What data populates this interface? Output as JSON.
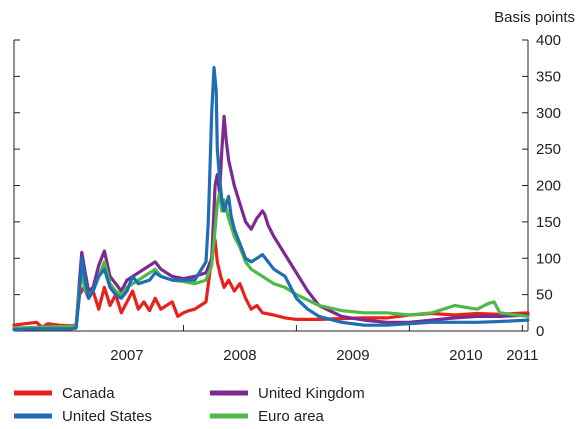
{
  "chart_data": {
    "type": "line",
    "title": "",
    "xlabel": "",
    "ylabel": "Basis points",
    "xlim": [
      2006.5,
      2011.05
    ],
    "ylim": [
      0,
      400
    ],
    "grid": false,
    "legend_position": "bottom-left",
    "x_ticks": [
      "2007",
      "2008",
      "2009",
      "2010",
      "2011"
    ],
    "y_ticks": [
      "0",
      "50",
      "100",
      "150",
      "200",
      "250",
      "300",
      "350",
      "400"
    ],
    "series": [
      {
        "name": "Canada",
        "color": "#e8211c",
        "x": [
          2006.5,
          2006.6,
          2006.7,
          2006.75,
          2006.8,
          2006.9,
          2007.0,
          2007.05,
          2007.08,
          2007.12,
          2007.16,
          2007.2,
          2007.25,
          2007.3,
          2007.35,
          2007.4,
          2007.45,
          2007.5,
          2007.55,
          2007.6,
          2007.65,
          2007.7,
          2007.75,
          2007.8,
          2007.85,
          2007.9,
          2007.95,
          2008.0,
          2008.05,
          2008.1,
          2008.15,
          2008.2,
          2008.25,
          2008.28,
          2008.3,
          2008.33,
          2008.36,
          2008.4,
          2008.45,
          2008.5,
          2008.55,
          2008.6,
          2008.65,
          2008.7,
          2008.8,
          2008.9,
          2009.0,
          2009.2,
          2009.4,
          2009.6,
          2009.8,
          2010.0,
          2010.2,
          2010.4,
          2010.6,
          2010.8,
          2011.05
        ],
        "y": [
          8,
          10,
          12,
          5,
          10,
          8,
          7,
          8,
          50,
          60,
          45,
          55,
          30,
          60,
          35,
          50,
          25,
          40,
          55,
          30,
          40,
          28,
          45,
          30,
          35,
          40,
          20,
          25,
          28,
          30,
          35,
          40,
          100,
          125,
          95,
          75,
          60,
          70,
          55,
          65,
          45,
          30,
          35,
          25,
          22,
          18,
          16,
          16,
          17,
          18,
          18,
          22,
          24,
          22,
          24,
          23,
          25
        ]
      },
      {
        "name": "United Kingdom",
        "color": "#7b2a90",
        "x": [
          2006.5,
          2006.7,
          2006.9,
          2007.0,
          2007.05,
          2007.08,
          2007.1,
          2007.13,
          2007.16,
          2007.2,
          2007.25,
          2007.3,
          2007.35,
          2007.4,
          2007.45,
          2007.5,
          2007.6,
          2007.7,
          2007.75,
          2007.8,
          2007.85,
          2007.9,
          2008.0,
          2008.1,
          2008.2,
          2008.25,
          2008.28,
          2008.3,
          2008.32,
          2008.34,
          2008.36,
          2008.38,
          2008.4,
          2008.45,
          2008.5,
          2008.55,
          2008.6,
          2008.65,
          2008.7,
          2008.72,
          2008.75,
          2008.8,
          2008.9,
          2009.0,
          2009.1,
          2009.2,
          2009.4,
          2009.6,
          2009.8,
          2010.0,
          2010.2,
          2010.4,
          2010.6,
          2010.8,
          2011.05
        ],
        "y": [
          3,
          4,
          5,
          5,
          6,
          70,
          108,
          80,
          55,
          60,
          90,
          110,
          75,
          65,
          55,
          70,
          80,
          90,
          95,
          85,
          80,
          75,
          72,
          75,
          80,
          100,
          200,
          215,
          190,
          250,
          295,
          260,
          235,
          200,
          175,
          150,
          140,
          155,
          165,
          160,
          145,
          130,
          105,
          80,
          55,
          35,
          20,
          15,
          12,
          12,
          15,
          18,
          20,
          20,
          22
        ]
      },
      {
        "name": "Euro area",
        "color": "#4fb847",
        "x": [
          2006.5,
          2006.7,
          2006.9,
          2007.0,
          2007.05,
          2007.08,
          2007.1,
          2007.13,
          2007.16,
          2007.2,
          2007.25,
          2007.3,
          2007.35,
          2007.4,
          2007.45,
          2007.5,
          2007.6,
          2007.7,
          2007.75,
          2007.8,
          2007.9,
          2008.0,
          2008.1,
          2008.2,
          2008.25,
          2008.28,
          2008.3,
          2008.32,
          2008.34,
          2008.36,
          2008.4,
          2008.45,
          2008.5,
          2008.55,
          2008.6,
          2008.7,
          2008.8,
          2008.9,
          2009.0,
          2009.2,
          2009.4,
          2009.6,
          2009.8,
          2010.0,
          2010.2,
          2010.3,
          2010.4,
          2010.6,
          2010.7,
          2010.75,
          2010.8,
          2011.05
        ],
        "y": [
          4,
          5,
          6,
          6,
          7,
          60,
          80,
          55,
          50,
          55,
          75,
          95,
          65,
          55,
          50,
          60,
          70,
          80,
          85,
          75,
          70,
          68,
          65,
          70,
          90,
          140,
          175,
          190,
          165,
          180,
          155,
          130,
          115,
          95,
          85,
          75,
          65,
          60,
          50,
          35,
          28,
          25,
          25,
          22,
          25,
          30,
          35,
          30,
          38,
          40,
          25,
          20
        ]
      },
      {
        "name": "United States",
        "color": "#1f6eb5",
        "x": [
          2006.5,
          2006.7,
          2006.9,
          2007.0,
          2007.05,
          2007.08,
          2007.1,
          2007.13,
          2007.16,
          2007.2,
          2007.25,
          2007.3,
          2007.35,
          2007.4,
          2007.45,
          2007.5,
          2007.55,
          2007.6,
          2007.7,
          2007.75,
          2007.8,
          2007.9,
          2008.0,
          2008.1,
          2008.2,
          2008.22,
          2008.25,
          2008.27,
          2008.29,
          2008.3,
          2008.32,
          2008.34,
          2008.36,
          2008.4,
          2008.42,
          2008.45,
          2008.5,
          2008.55,
          2008.6,
          2008.65,
          2008.7,
          2008.75,
          2008.8,
          2008.9,
          2009.0,
          2009.1,
          2009.2,
          2009.4,
          2009.6,
          2009.8,
          2010.0,
          2010.2,
          2010.4,
          2010.6,
          2010.8,
          2011.05
        ],
        "y": [
          2,
          3,
          3,
          3,
          4,
          50,
          100,
          70,
          45,
          55,
          75,
          85,
          60,
          50,
          45,
          55,
          75,
          65,
          70,
          80,
          75,
          70,
          70,
          70,
          95,
          150,
          300,
          362,
          330,
          250,
          210,
          180,
          165,
          185,
          160,
          140,
          120,
          100,
          95,
          100,
          105,
          95,
          85,
          75,
          45,
          30,
          20,
          12,
          8,
          8,
          10,
          12,
          12,
          12,
          13,
          15
        ]
      }
    ],
    "legend_order": [
      "Canada",
      "United Kingdom",
      "United States",
      "Euro area"
    ]
  }
}
